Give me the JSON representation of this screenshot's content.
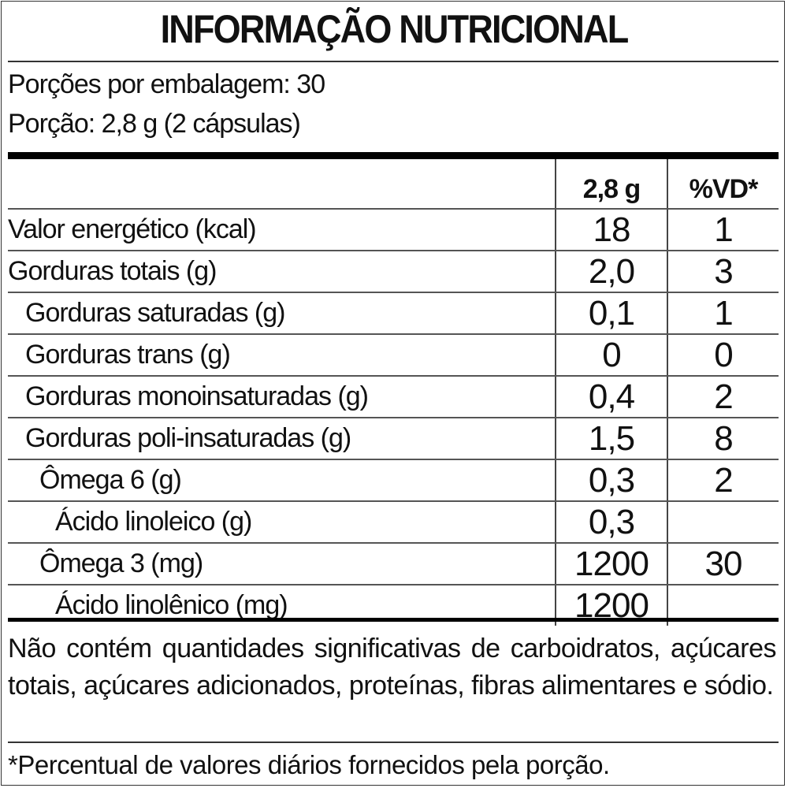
{
  "title": "INFORMAÇÃO NUTRICIONAL",
  "servings_per_package": "Porções por embalagem: 30",
  "serving_size": "Porção: 2,8 g (2 cápsulas)",
  "table": {
    "headers": [
      "",
      "2,8 g",
      "%VD*"
    ],
    "rows": [
      {
        "label": "Valor energético (kcal)",
        "value": "18",
        "dv": "1",
        "indent": 0
      },
      {
        "label": "Gorduras totais (g)",
        "value": "2,0",
        "dv": "3",
        "indent": 0
      },
      {
        "label": "Gorduras saturadas (g)",
        "value": "0,1",
        "dv": "1",
        "indent": 1
      },
      {
        "label": "Gorduras trans (g)",
        "value": "0",
        "dv": "0",
        "indent": 1
      },
      {
        "label": "Gorduras monoinsaturadas (g)",
        "value": "0,4",
        "dv": "2",
        "indent": 1
      },
      {
        "label": "Gorduras poli-insaturadas (g)",
        "value": "1,5",
        "dv": "8",
        "indent": 1
      },
      {
        "label": "Ômega 6 (g)",
        "value": "0,3",
        "dv": "2",
        "indent": 2
      },
      {
        "label": "Ácido linoleico (g)",
        "value": "0,3",
        "dv": "",
        "indent": 3
      },
      {
        "label": "Ômega 3 (mg)",
        "value": "1200",
        "dv": "30",
        "indent": 2
      },
      {
        "label": "Ácido linolênico (mg)",
        "value": "1200",
        "dv": "",
        "indent": 3
      }
    ]
  },
  "note": "Não contém quantidades significativas de carboidratos, açúcares totais, açúcares adicionados, proteínas, fibras alimentares e sódio.",
  "footnote": "*Percentual de valores diários fornecidos pela porção."
}
